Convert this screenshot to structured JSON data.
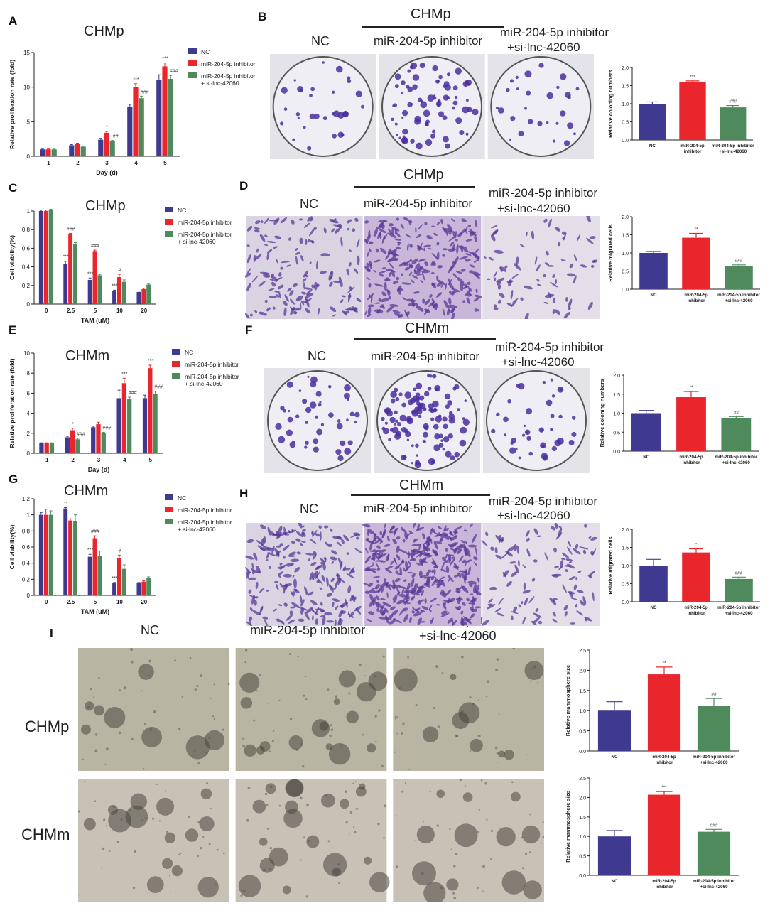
{
  "colors": {
    "nc": "#3f3a8f",
    "inhibitor": "#e8262b",
    "si": "#4e8a5b",
    "stain": "#4b2fa0",
    "dish": "#efeef4"
  },
  "panels": {
    "A": "A",
    "B": "B",
    "C": "C",
    "D": "D",
    "E": "E",
    "F": "F",
    "G": "G",
    "H": "H",
    "I": "I"
  },
  "titles": {
    "chmp": "CHMp",
    "chmm": "CHMm"
  },
  "conditions": {
    "nc": "NC",
    "inhibitor": "miR-204-5p inhibitor",
    "combo_line1": "miR-204-5p inhibitor",
    "combo_line2": "+si-lnc-42060"
  },
  "rows": {
    "chmp": "CHMp",
    "chmm": "CHMm"
  },
  "chart_data": [
    {
      "id": "A",
      "type": "bar",
      "title": "CHMp",
      "xlabel": "Day (d)",
      "ylabel": "Relative proliferation rate (fold)",
      "categories": [
        "1",
        "2",
        "3",
        "4",
        "5"
      ],
      "ylim": [
        0,
        15
      ],
      "yticks": [
        0,
        5,
        10,
        15
      ],
      "legend": [
        "NC",
        "miR-204-5p inhibitor",
        "miR-204-5p inhibitor\n+ si-lnc-42060"
      ],
      "series": [
        {
          "name": "NC",
          "values": [
            1.0,
            1.6,
            2.4,
            7.2,
            11.0
          ],
          "errors": [
            0.05,
            0.1,
            0.2,
            0.3,
            0.8
          ]
        },
        {
          "name": "miR-204-5p inhibitor",
          "values": [
            1.0,
            1.8,
            3.4,
            10.0,
            13.0
          ],
          "errors": [
            0.05,
            0.1,
            0.2,
            0.5,
            0.5
          ]
        },
        {
          "name": "miR-204-5p inhibitor + si-lnc-42060",
          "values": [
            1.0,
            1.4,
            2.2,
            8.4,
            11.2
          ],
          "errors": [
            0.05,
            0.1,
            0.1,
            0.3,
            0.5
          ]
        }
      ],
      "annotations": [
        [
          "",
          "",
          ""
        ],
        [
          "",
          "",
          ""
        ],
        [
          "",
          "*",
          "##"
        ],
        [
          "",
          "***",
          "###"
        ],
        [
          "",
          "***",
          "###"
        ]
      ]
    },
    {
      "id": "B",
      "type": "bar",
      "ylabel": "Relative coloning numbers",
      "categories": [
        "NC",
        "miR-204-5p inhibitor",
        "miR-204-5p inhibitor +si-lnc-42060"
      ],
      "ylim": [
        0,
        2.0
      ],
      "yticks": [
        0,
        0.5,
        1.0,
        1.5,
        2.0
      ],
      "values": [
        1.0,
        1.6,
        0.9
      ],
      "errors": [
        0.05,
        0.03,
        0.05
      ],
      "annotations": [
        "",
        "***",
        "###"
      ]
    },
    {
      "id": "C",
      "type": "bar",
      "title": "CHMp",
      "xlabel": "TAM (uM)",
      "ylabel": "Cell viability(%)",
      "categories": [
        "0",
        "2.5",
        "5",
        "10",
        "20"
      ],
      "ylim": [
        0,
        1.0
      ],
      "yticks": [
        0,
        0.2,
        0.4,
        0.6,
        0.8,
        1.0
      ],
      "legend": [
        "NC",
        "miR-204-5p inhibitor",
        "miR-204-5p inhibitor\n+ si-lnc-42060"
      ],
      "series": [
        {
          "name": "NC",
          "values": [
            1.0,
            0.43,
            0.26,
            0.14,
            0.13
          ],
          "errors": [
            0.01,
            0.03,
            0.02,
            0.01,
            0.01
          ]
        },
        {
          "name": "miR-204-5p inhibitor",
          "values": [
            1.0,
            0.75,
            0.57,
            0.29,
            0.16
          ],
          "errors": [
            0.01,
            0.01,
            0.01,
            0.03,
            0.01
          ]
        },
        {
          "name": "miR-204-5p inhibitor + si-lnc-42060",
          "values": [
            1.01,
            0.65,
            0.31,
            0.24,
            0.21
          ],
          "errors": [
            0.01,
            0.01,
            0.01,
            0.02,
            0.01
          ]
        }
      ],
      "annotations": [
        [
          "",
          "",
          ""
        ],
        [
          "***",
          "###",
          ""
        ],
        [
          "***",
          "###",
          ""
        ],
        [
          "***",
          "#",
          ""
        ],
        [
          "",
          "",
          ""
        ]
      ]
    },
    {
      "id": "D",
      "type": "bar",
      "ylabel": "Relative migrated cells",
      "categories": [
        "NC",
        "miR-204-5p inhibitor",
        "miR-204-5p inhibitor +si-lnc-42060"
      ],
      "ylim": [
        0,
        2.0
      ],
      "yticks": [
        0,
        0.5,
        1.0,
        1.5,
        2.0
      ],
      "values": [
        1.0,
        1.42,
        0.64
      ],
      "errors": [
        0.04,
        0.12,
        0.03
      ],
      "annotations": [
        "",
        "**",
        "###"
      ]
    },
    {
      "id": "E",
      "type": "bar",
      "title": "CHMm",
      "xlabel": "Day (d)",
      "ylabel": "Relative proliferation rate (fold)",
      "categories": [
        "1",
        "2",
        "3",
        "4",
        "5"
      ],
      "ylim": [
        0,
        10
      ],
      "yticks": [
        0,
        2,
        4,
        6,
        8,
        10
      ],
      "legend": [
        "NC",
        "miR-204-5p inhibitor",
        "miR-204-5p inhibitor\n+ si-lnc-42060"
      ],
      "series": [
        {
          "name": "NC",
          "values": [
            1.0,
            1.6,
            2.6,
            5.5,
            5.5
          ],
          "errors": [
            0.05,
            0.1,
            0.1,
            0.8,
            0.3
          ]
        },
        {
          "name": "miR-204-5p inhibitor",
          "values": [
            1.0,
            2.3,
            2.9,
            7.0,
            8.5
          ],
          "errors": [
            0.05,
            0.2,
            0.2,
            0.5,
            0.3
          ]
        },
        {
          "name": "miR-204-5p inhibitor + si-lnc-42060",
          "values": [
            1.0,
            1.4,
            2.0,
            5.4,
            5.9
          ],
          "errors": [
            0.05,
            0.1,
            0.1,
            0.2,
            0.3
          ]
        }
      ],
      "annotations": [
        [
          "",
          "",
          ""
        ],
        [
          "",
          "*",
          "###"
        ],
        [
          "",
          "",
          "###"
        ],
        [
          "",
          "***",
          "###"
        ],
        [
          "",
          "***",
          "###"
        ]
      ]
    },
    {
      "id": "F",
      "type": "bar",
      "ylabel": "Relative coloning numbers",
      "categories": [
        "NC",
        "miR-204-5p inhibitor",
        "miR-204-5p inhibitor +si-lnc-42060"
      ],
      "ylim": [
        0,
        2.0
      ],
      "yticks": [
        0,
        0.5,
        1.0,
        1.5,
        2.0
      ],
      "values": [
        1.0,
        1.42,
        0.87
      ],
      "errors": [
        0.07,
        0.15,
        0.04
      ],
      "annotations": [
        "",
        "**",
        "##"
      ]
    },
    {
      "id": "G",
      "type": "bar",
      "title": "CHMm",
      "xlabel": "TAM (uM)",
      "ylabel": "Cell viability(%)",
      "categories": [
        "0",
        "2.5",
        "5",
        "10",
        "20"
      ],
      "ylim": [
        0,
        1.2
      ],
      "yticks": [
        0,
        0.2,
        0.4,
        0.6,
        0.8,
        1.0,
        1.2
      ],
      "legend": [
        "NC",
        "miR-204-5p inhibitor",
        "miR-204-5p inhibitor\n+ si-lnc-42060"
      ],
      "series": [
        {
          "name": "NC",
          "values": [
            1.0,
            1.08,
            0.48,
            0.15,
            0.15
          ],
          "errors": [
            0.03,
            0.01,
            0.03,
            0.01,
            0.01
          ]
        },
        {
          "name": "miR-204-5p inhibitor",
          "values": [
            1.0,
            0.93,
            0.71,
            0.46,
            0.17
          ],
          "errors": [
            0.07,
            0.02,
            0.03,
            0.04,
            0.01
          ]
        },
        {
          "name": "miR-204-5p inhibitor + si-lnc-42060",
          "values": [
            1.0,
            0.92,
            0.49,
            0.33,
            0.22
          ],
          "errors": [
            0.05,
            0.08,
            0.06,
            0.05,
            0.01
          ]
        }
      ],
      "annotations": [
        [
          "",
          "",
          ""
        ],
        [
          "**",
          "",
          ""
        ],
        [
          "***",
          "###",
          ""
        ],
        [
          "***",
          "#",
          ""
        ],
        [
          "",
          "",
          ""
        ]
      ]
    },
    {
      "id": "H",
      "type": "bar",
      "ylabel": "Relative migrated cells",
      "categories": [
        "NC",
        "miR-204-5p inhibitor",
        "miR-204-5p inhibitor +si-lnc-42060"
      ],
      "ylim": [
        0,
        2.0
      ],
      "yticks": [
        0,
        0.5,
        1.0,
        1.5,
        2.0
      ],
      "values": [
        1.0,
        1.36,
        0.63
      ],
      "errors": [
        0.17,
        0.1,
        0.05
      ],
      "annotations": [
        "",
        "*",
        "###"
      ]
    },
    {
      "id": "I1",
      "type": "bar",
      "ylabel": "Relative mammosphere size",
      "categories": [
        "NC",
        "miR-204-5p inhibitor",
        "miR-204-5p inhibitor +si-lnc-42060"
      ],
      "ylim": [
        0,
        2.5
      ],
      "yticks": [
        0,
        0.5,
        1.0,
        1.5,
        2.0,
        2.5
      ],
      "values": [
        1.0,
        1.9,
        1.12
      ],
      "errors": [
        0.22,
        0.18,
        0.18
      ],
      "annotations": [
        "",
        "**",
        "##"
      ]
    },
    {
      "id": "I2",
      "type": "bar",
      "ylabel": "Relative mammosphere size",
      "categories": [
        "NC",
        "miR-204-5p inhibitor",
        "miR-204-5p inhibitor +si-lnc-42060"
      ],
      "ylim": [
        0,
        2.5
      ],
      "yticks": [
        0,
        0.5,
        1.0,
        1.5,
        2.0,
        2.5
      ],
      "values": [
        1.0,
        2.07,
        1.12
      ],
      "errors": [
        0.15,
        0.08,
        0.06
      ],
      "annotations": [
        "",
        "***",
        "###"
      ]
    }
  ]
}
